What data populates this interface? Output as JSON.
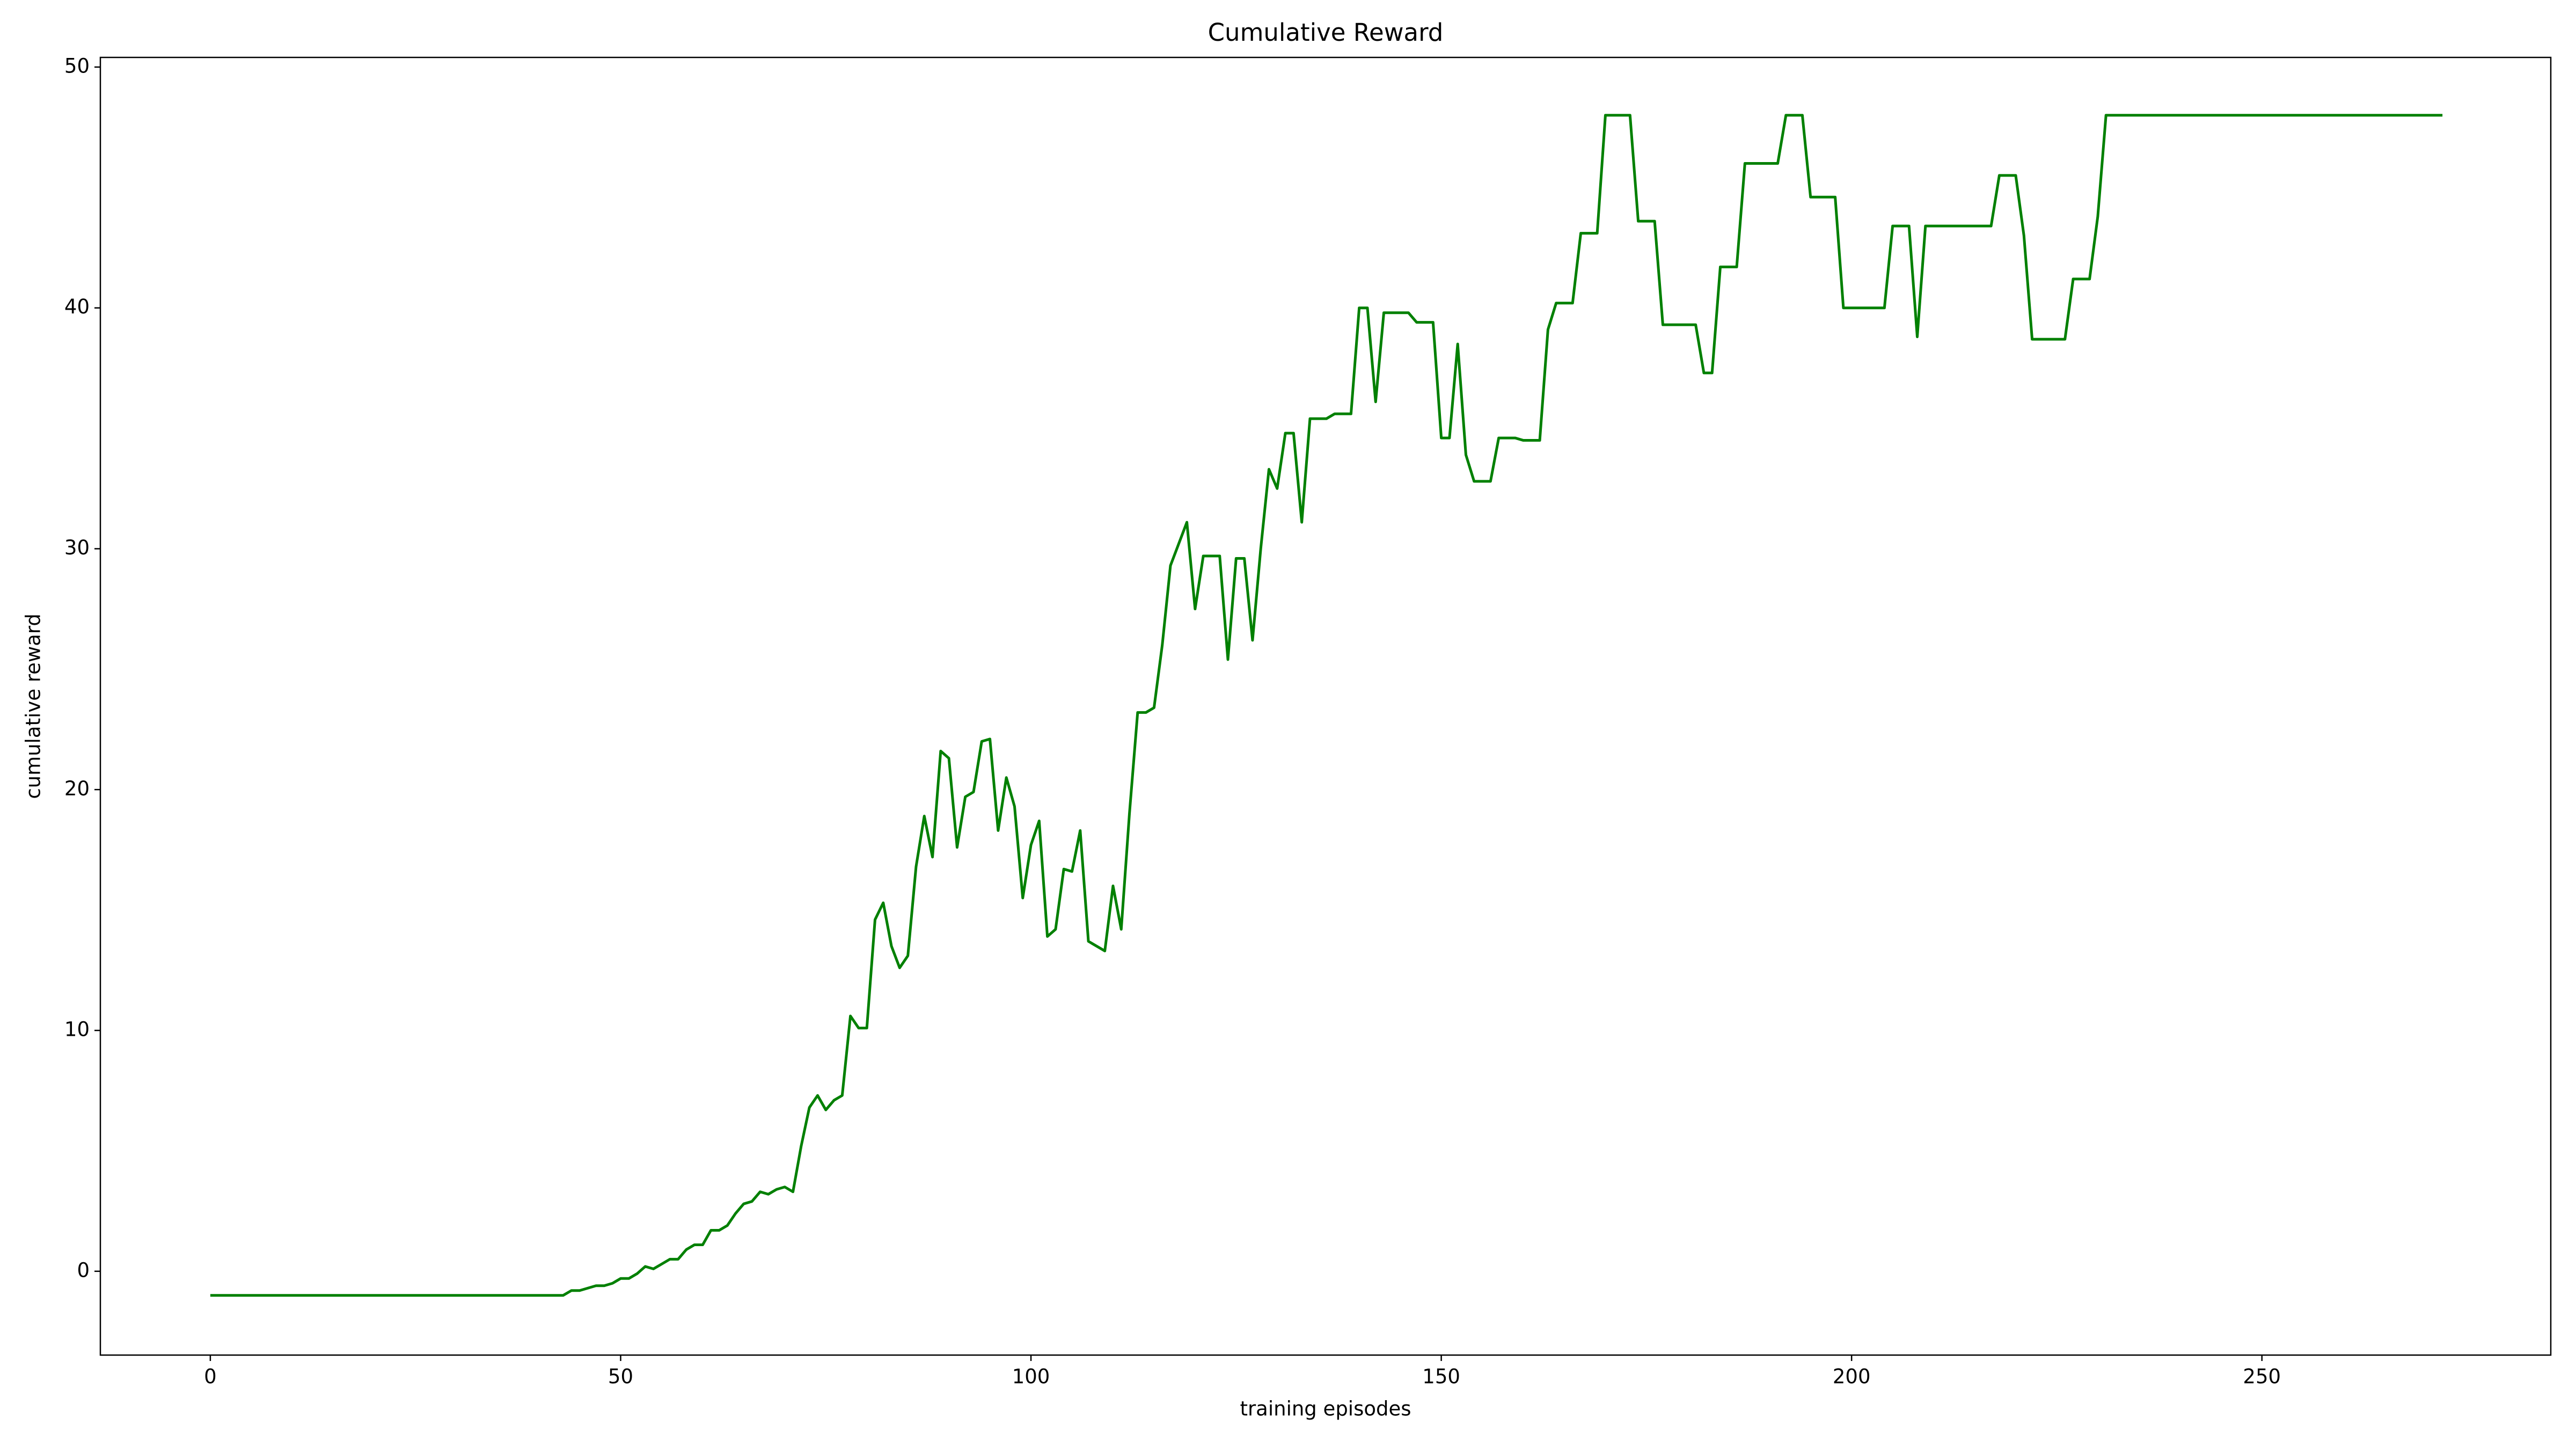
{
  "chart_data": {
    "type": "line",
    "title": "Cumulative Reward",
    "x_label": "training episodes",
    "y_label": "cumulative reward",
    "xlim": [
      -13.4,
      285.2
    ],
    "ylim": [
      -3.48,
      50.4
    ],
    "xticks": [
      0,
      50,
      100,
      150,
      200,
      250
    ],
    "yticks": [
      0,
      10,
      20,
      30,
      40,
      50
    ],
    "grid": false,
    "x": [
      0,
      43,
      44,
      45,
      47,
      48,
      49,
      50,
      51,
      52,
      53,
      54,
      55,
      56,
      57,
      58,
      59,
      60,
      61,
      62,
      63,
      64,
      65,
      66,
      67,
      68,
      69,
      70,
      71,
      72,
      73,
      74,
      75,
      76,
      77,
      78,
      79,
      80,
      81,
      82,
      83,
      84,
      85,
      86,
      87,
      88,
      89,
      90,
      91,
      92,
      93,
      94,
      95,
      96,
      97,
      98,
      99,
      100,
      101,
      102,
      103,
      104,
      105,
      106,
      107,
      109,
      110,
      111,
      112,
      113,
      114,
      115,
      116,
      117,
      118,
      119,
      120,
      121,
      123,
      124,
      125,
      126,
      127,
      128,
      129,
      130,
      131,
      132,
      133,
      134,
      136,
      137,
      139,
      140,
      141,
      142,
      143,
      146,
      147,
      149,
      150,
      151,
      152,
      153,
      154,
      156,
      157,
      159,
      160,
      162,
      163,
      164,
      166,
      167,
      169,
      170,
      173,
      174,
      176,
      177,
      181,
      182,
      183,
      184,
      186,
      187,
      191,
      192,
      194,
      195,
      198,
      199,
      204,
      205,
      207,
      208,
      209,
      217,
      218,
      220,
      221,
      222,
      226,
      227,
      229,
      230,
      231,
      272
    ],
    "series": [
      {
        "name": "cumulative reward",
        "color": "#008000",
        "values": [
          -1,
          -1,
          -0.8,
          -0.8,
          -0.6,
          -0.6,
          -0.5,
          -0.3,
          -0.3,
          -0.1,
          0.2,
          0.1,
          0.3,
          0.5,
          0.5,
          0.9,
          1.1,
          1.1,
          1.7,
          1.7,
          1.9,
          2.4,
          2.8,
          2.9,
          3.3,
          3.2,
          3.4,
          3.5,
          3.3,
          5.2,
          6.8,
          7.3,
          6.7,
          7.1,
          7.3,
          10.6,
          10.1,
          10.1,
          14.6,
          15.3,
          13.5,
          12.6,
          13.1,
          16.8,
          18.9,
          17.2,
          21.6,
          21.3,
          17.6,
          19.7,
          19.9,
          22.0,
          22.1,
          18.3,
          20.5,
          19.3,
          15.5,
          17.7,
          18.7,
          13.9,
          14.2,
          16.7,
          16.6,
          18.3,
          13.7,
          13.3,
          16.0,
          14.2,
          19.0,
          23.2,
          23.2,
          23.4,
          26.0,
          29.3,
          30.2,
          31.1,
          27.5,
          29.7,
          29.7,
          25.4,
          29.6,
          29.6,
          26.2,
          30.0,
          33.3,
          32.5,
          34.8,
          34.8,
          31.1,
          35.4,
          35.4,
          35.6,
          35.6,
          40.0,
          40.0,
          36.1,
          39.8,
          39.8,
          39.4,
          39.4,
          34.6,
          34.6,
          38.5,
          33.9,
          32.8,
          32.8,
          34.6,
          34.6,
          34.5,
          34.5,
          39.1,
          40.2,
          40.2,
          43.1,
          43.1,
          48.0,
          48.0,
          43.6,
          43.6,
          39.3,
          39.3,
          37.3,
          37.3,
          41.7,
          41.7,
          46.0,
          46.0,
          48.0,
          48.0,
          44.6,
          44.6,
          40.0,
          40.0,
          43.4,
          43.4,
          38.8,
          43.4,
          43.4,
          45.5,
          45.5,
          43.0,
          38.7,
          38.7,
          41.2,
          41.2,
          43.8,
          48.0,
          48.0
        ]
      }
    ]
  }
}
